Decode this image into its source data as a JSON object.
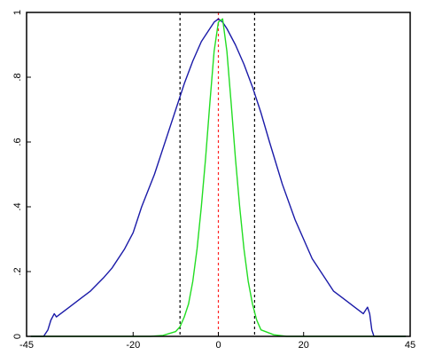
{
  "chart_data": {
    "type": "line",
    "title": "",
    "xlabel": "",
    "ylabel": "",
    "xlim": [
      -45,
      45
    ],
    "ylim": [
      0,
      1
    ],
    "grid": false,
    "x_ticks": [
      {
        "value": -45,
        "label": "-45"
      },
      {
        "value": -20,
        "label": "-20"
      },
      {
        "value": 0,
        "label": "0"
      },
      {
        "value": 20,
        "label": "20"
      },
      {
        "value": 45,
        "label": "45"
      }
    ],
    "y_ticks": [
      {
        "value": 0,
        "label": "0"
      },
      {
        "value": 0.2,
        "label": ".2"
      },
      {
        "value": 0.4,
        "label": ".4"
      },
      {
        "value": 0.6,
        "label": ".6"
      },
      {
        "value": 0.8,
        "label": ".8"
      },
      {
        "value": 1,
        "label": "1"
      }
    ],
    "series": [
      {
        "color": "#1a1aa8",
        "x": [
          -44,
          -41,
          -40,
          -39.3,
          -38.5,
          -38,
          -37,
          -35,
          -32,
          -30,
          -27,
          -25,
          -22,
          -20,
          -18,
          -15,
          -12,
          -10,
          -8,
          -6,
          -4,
          -2,
          -1,
          0,
          1,
          2,
          4,
          6,
          8,
          10,
          12,
          15,
          18,
          20,
          22,
          25,
          27,
          30,
          32,
          33,
          34,
          34.5,
          35,
          35.5,
          36,
          36.5,
          37.5,
          44
        ],
        "y": [
          0.0,
          0.0,
          0.02,
          0.05,
          0.07,
          0.06,
          0.07,
          0.09,
          0.12,
          0.14,
          0.18,
          0.21,
          0.27,
          0.32,
          0.4,
          0.5,
          0.62,
          0.7,
          0.78,
          0.85,
          0.91,
          0.95,
          0.97,
          0.98,
          0.97,
          0.95,
          0.9,
          0.84,
          0.77,
          0.69,
          0.6,
          0.47,
          0.36,
          0.3,
          0.24,
          0.18,
          0.14,
          0.11,
          0.09,
          0.08,
          0.07,
          0.08,
          0.09,
          0.07,
          0.02,
          0.0,
          0.0,
          0.0
        ]
      },
      {
        "color": "#22dd22",
        "x": [
          -44,
          -16,
          -13,
          -10,
          -9,
          -8,
          -7,
          -6,
          -5,
          -4,
          -3,
          -2,
          -1,
          0,
          1,
          2,
          3,
          4,
          5,
          6,
          7,
          8,
          9,
          10,
          13,
          16,
          44
        ],
        "y": [
          0.0,
          0.0,
          0.003,
          0.015,
          0.03,
          0.06,
          0.1,
          0.17,
          0.27,
          0.4,
          0.55,
          0.72,
          0.88,
          0.97,
          0.98,
          0.88,
          0.72,
          0.55,
          0.4,
          0.27,
          0.17,
          0.1,
          0.05,
          0.02,
          0.005,
          0.0,
          0.0
        ]
      }
    ],
    "reference_lines": [
      {
        "orientation": "vertical",
        "x": -9,
        "color": "#000000",
        "style": "dashed"
      },
      {
        "orientation": "vertical",
        "x": 0,
        "color": "#ff2222",
        "style": "dashed"
      },
      {
        "orientation": "vertical",
        "x": 8.5,
        "color": "#000000",
        "style": "dashed"
      }
    ]
  }
}
